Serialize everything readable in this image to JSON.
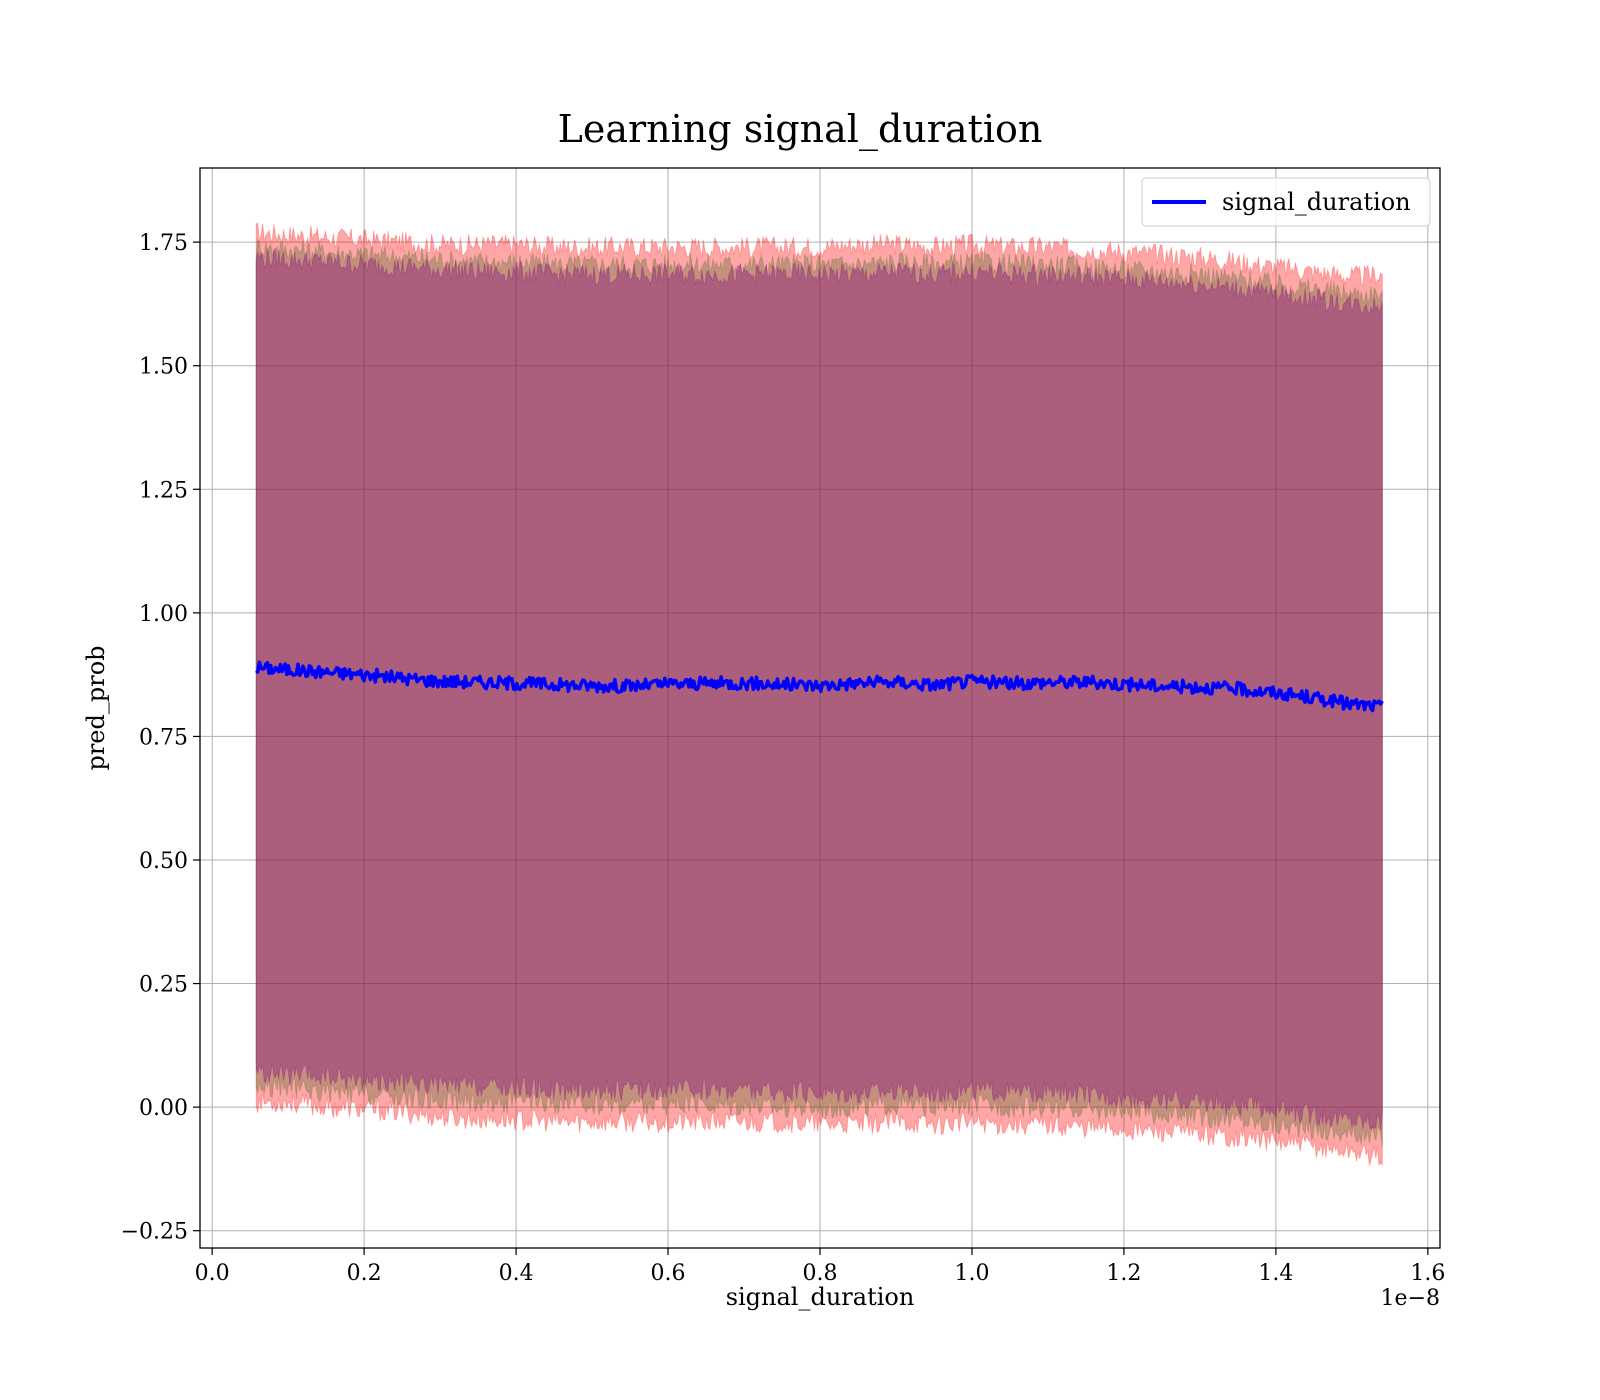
{
  "chart_data": {
    "type": "line",
    "title": "Learning signal_duration",
    "xlabel": "signal_duration",
    "ylabel": "pred_prob",
    "x_offset_label": "1e−8",
    "xlim": [
      -0.016,
      1.616
    ],
    "ylim": [
      -0.285,
      1.9
    ],
    "x_ticks": [
      0.0,
      0.2,
      0.4,
      0.6,
      0.8,
      1.0,
      1.2,
      1.4,
      1.6
    ],
    "x_tick_labels": [
      "0.0",
      "0.2",
      "0.4",
      "0.6",
      "0.8",
      "1.0",
      "1.2",
      "1.4",
      "1.6"
    ],
    "y_ticks": [
      -0.25,
      0.0,
      0.25,
      0.5,
      0.75,
      1.0,
      1.25,
      1.5,
      1.75
    ],
    "y_tick_labels": [
      "−0.25",
      "0.00",
      "0.25",
      "0.50",
      "0.75",
      "1.00",
      "1.25",
      "1.50",
      "1.75"
    ],
    "grid": true,
    "legend_position": "top-right",
    "series": [
      {
        "name": "signal_duration",
        "color": "#0000ff",
        "x": [
          0.058,
          0.1,
          0.15,
          0.2,
          0.25,
          0.3,
          0.35,
          0.4,
          0.45,
          0.5,
          0.55,
          0.6,
          0.65,
          0.7,
          0.75,
          0.8,
          0.85,
          0.9,
          0.95,
          1.0,
          1.05,
          1.1,
          1.15,
          1.2,
          1.25,
          1.3,
          1.35,
          1.4,
          1.45,
          1.5,
          1.54
        ],
        "y": [
          0.89,
          0.885,
          0.88,
          0.875,
          0.868,
          0.862,
          0.86,
          0.858,
          0.855,
          0.853,
          0.852,
          0.856,
          0.857,
          0.858,
          0.855,
          0.853,
          0.858,
          0.86,
          0.854,
          0.862,
          0.857,
          0.86,
          0.86,
          0.856,
          0.852,
          0.85,
          0.846,
          0.838,
          0.828,
          0.815,
          0.81
        ]
      }
    ],
    "bands": [
      {
        "color": "#ff0000",
        "opacity": 0.35,
        "upper": [
          1.77,
          1.765,
          1.76,
          1.755,
          1.75,
          1.745,
          1.745,
          1.745,
          1.74,
          1.74,
          1.74,
          1.74,
          1.74,
          1.74,
          1.74,
          1.74,
          1.745,
          1.745,
          1.74,
          1.745,
          1.74,
          1.74,
          1.735,
          1.73,
          1.725,
          1.72,
          1.71,
          1.7,
          1.69,
          1.68,
          1.685
        ],
        "lower": [
          0.01,
          0.01,
          0.0,
          -0.005,
          -0.01,
          -0.02,
          -0.025,
          -0.025,
          -0.03,
          -0.03,
          -0.03,
          -0.03,
          -0.03,
          -0.03,
          -0.03,
          -0.035,
          -0.035,
          -0.03,
          -0.035,
          -0.03,
          -0.035,
          -0.035,
          -0.04,
          -0.045,
          -0.05,
          -0.055,
          -0.06,
          -0.07,
          -0.08,
          -0.09,
          -0.1
        ]
      },
      {
        "color": "#556b2f",
        "opacity": 0.35,
        "upper": [
          1.74,
          1.735,
          1.73,
          1.725,
          1.72,
          1.715,
          1.71,
          1.71,
          1.705,
          1.705,
          1.705,
          1.705,
          1.705,
          1.705,
          1.705,
          1.705,
          1.705,
          1.71,
          1.705,
          1.71,
          1.705,
          1.705,
          1.7,
          1.695,
          1.69,
          1.685,
          1.675,
          1.665,
          1.655,
          1.645,
          1.645
        ],
        "lower": [
          0.04,
          0.04,
          0.03,
          0.025,
          0.02,
          0.015,
          0.01,
          0.01,
          0.005,
          0.005,
          0.005,
          0.005,
          0.005,
          0.005,
          0.0,
          0.0,
          0.0,
          0.005,
          0.0,
          0.005,
          0.0,
          0.0,
          -0.005,
          -0.01,
          -0.015,
          -0.02,
          -0.025,
          -0.035,
          -0.045,
          -0.055,
          -0.06
        ]
      },
      {
        "color": "#800080",
        "opacity": 0.35,
        "upper": [
          1.72,
          1.715,
          1.71,
          1.705,
          1.7,
          1.695,
          1.69,
          1.69,
          1.685,
          1.685,
          1.685,
          1.685,
          1.685,
          1.685,
          1.685,
          1.685,
          1.685,
          1.69,
          1.685,
          1.69,
          1.685,
          1.685,
          1.68,
          1.675,
          1.67,
          1.665,
          1.655,
          1.645,
          1.635,
          1.625,
          1.62
        ],
        "lower": [
          0.07,
          0.065,
          0.06,
          0.055,
          0.05,
          0.045,
          0.04,
          0.04,
          0.035,
          0.035,
          0.035,
          0.035,
          0.035,
          0.035,
          0.03,
          0.03,
          0.03,
          0.035,
          0.03,
          0.035,
          0.03,
          0.03,
          0.025,
          0.02,
          0.015,
          0.01,
          0.005,
          -0.005,
          -0.015,
          -0.025,
          -0.03
        ]
      }
    ]
  }
}
